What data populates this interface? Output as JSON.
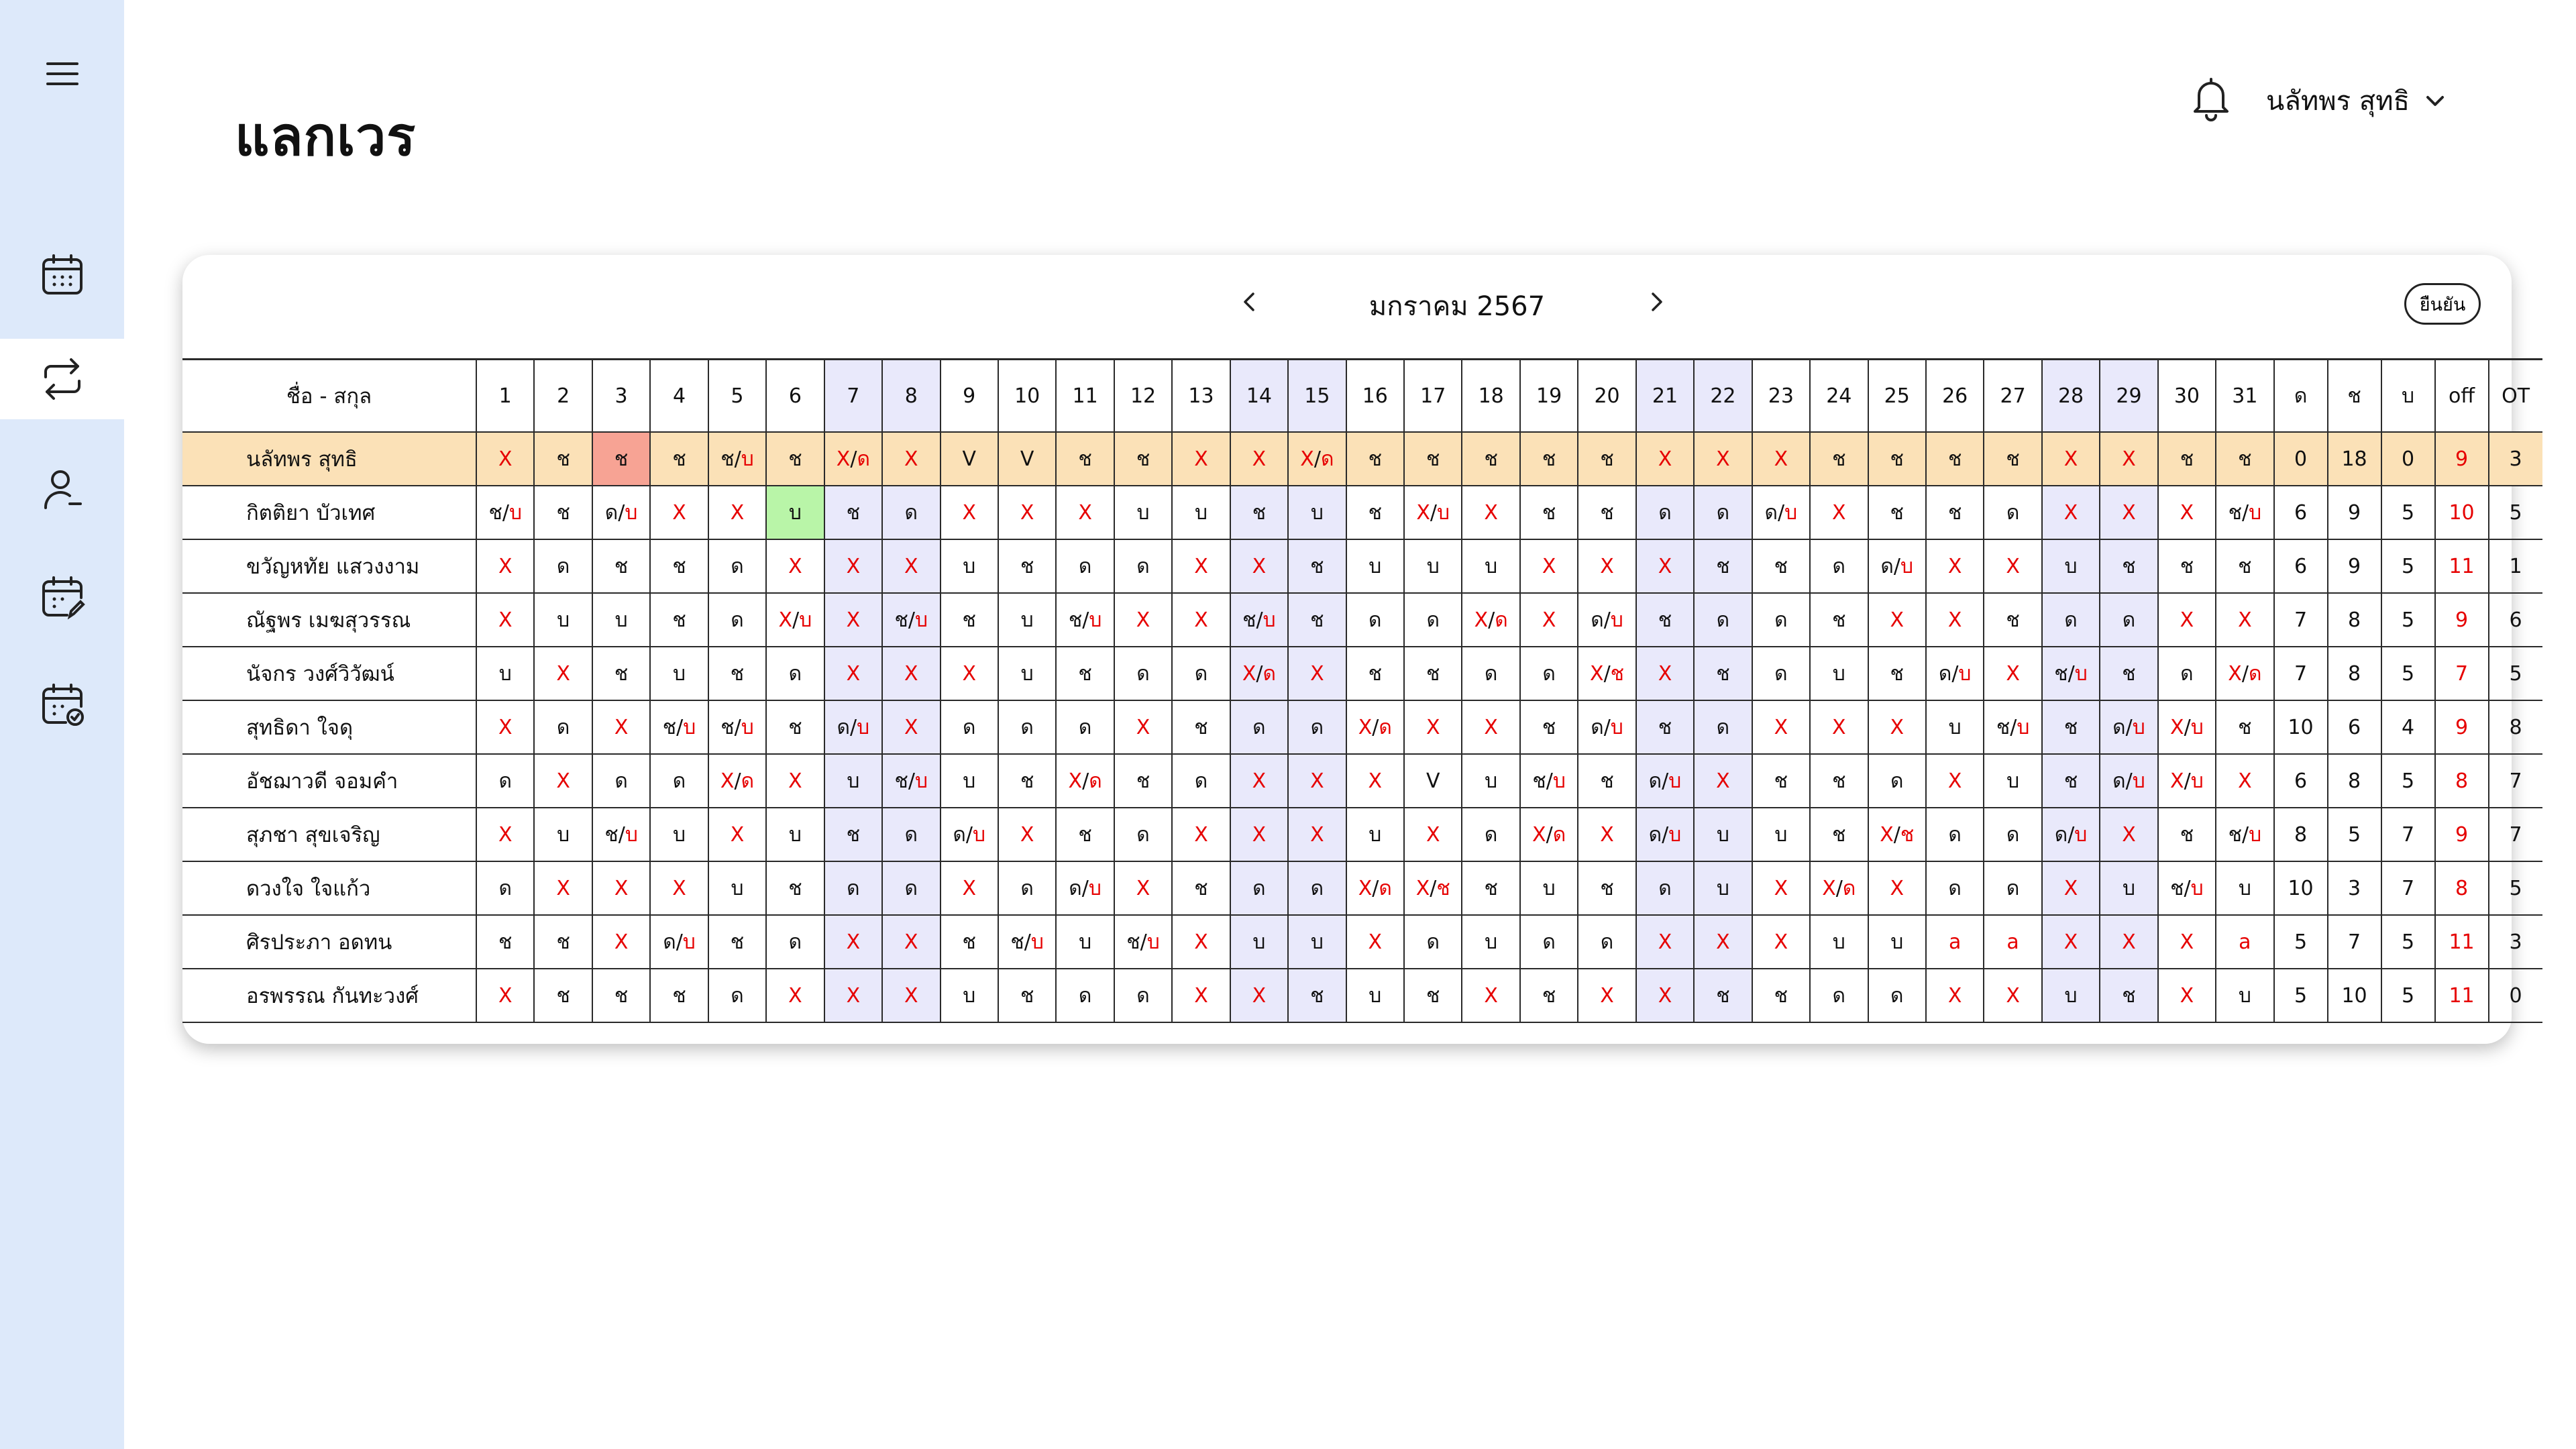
{
  "page": {
    "title": "แลกเวร"
  },
  "header": {
    "user_name": "นลัทพร สุทธิ"
  },
  "sidebar": {
    "items": [
      {
        "id": "menu",
        "icon": "hamburger-menu-icon",
        "active": false
      },
      {
        "id": "calendar",
        "icon": "calendar-icon",
        "active": false
      },
      {
        "id": "swap",
        "icon": "swap-arrows-icon",
        "active": true
      },
      {
        "id": "user",
        "icon": "user-minus-icon",
        "active": false
      },
      {
        "id": "calendar-edit",
        "icon": "calendar-edit-icon",
        "active": false
      },
      {
        "id": "calendar-check",
        "icon": "calendar-check-icon",
        "active": false
      }
    ]
  },
  "calendar": {
    "month_label": "มกราคม  2567",
    "confirm_label": "ยืนยัน"
  },
  "colors": {
    "sidebar_bg": "#dde9fa",
    "highlight_row": "#fbe1b7",
    "weekend_col": "#e9e9fb",
    "selected_cell": "#f7a394",
    "swap_cell": "#b9f5a8",
    "off_red": "#e60000"
  },
  "table": {
    "name_header": "ชื่อ - สกุล",
    "days": [
      "1",
      "2",
      "3",
      "4",
      "5",
      "6",
      "7",
      "8",
      "9",
      "10",
      "11",
      "12",
      "13",
      "14",
      "15",
      "16",
      "17",
      "18",
      "19",
      "20",
      "21",
      "22",
      "23",
      "24",
      "25",
      "26",
      "27",
      "28",
      "29",
      "30",
      "31"
    ],
    "weekend_days": [
      7,
      8,
      14,
      15,
      21,
      22,
      28,
      29
    ],
    "summary_headers": [
      "ด",
      "ช",
      "บ",
      "off",
      "OT"
    ],
    "rows": [
      {
        "name": "นลัทพร สุทธิ",
        "highlight": true,
        "shifts": [
          "X",
          "ช",
          "ช",
          "ช",
          "ช/บ",
          "ช",
          "X/ด",
          "X",
          "V",
          "V",
          "ช",
          "ช",
          "X",
          "X",
          "X/ด",
          "ช",
          "ช",
          "ช",
          "ช",
          "ช",
          "X",
          "X",
          "X",
          "ช",
          "ช",
          "ช",
          "ช",
          "X",
          "X",
          "ช",
          "ช"
        ],
        "summary": [
          "0",
          "18",
          "0",
          "9",
          "3"
        ]
      },
      {
        "name": "กิตติยา บัวเทศ",
        "shifts": [
          "ช/บ",
          "ช",
          "ด/บ",
          "X",
          "X",
          "บ",
          "ช",
          "ด",
          "X",
          "X",
          "X",
          "บ",
          "บ",
          "ช",
          "บ",
          "ช",
          "X/บ",
          "X",
          "ช",
          "ช",
          "ด",
          "ด",
          "ด/บ",
          "X",
          "ช",
          "ช",
          "ด",
          "X",
          "X",
          "X",
          "ช/บ"
        ],
        "summary": [
          "6",
          "9",
          "5",
          "10",
          "5"
        ]
      },
      {
        "name": "ขวัญหทัย แสวงงาม",
        "shifts": [
          "X",
          "ด",
          "ช",
          "ช",
          "ด",
          "X",
          "X",
          "X",
          "บ",
          "ช",
          "ด",
          "ด",
          "X",
          "X",
          "ช",
          "บ",
          "บ",
          "บ",
          "X",
          "X",
          "X",
          "ช",
          "ช",
          "ด",
          "ด/บ",
          "X",
          "X",
          "บ",
          "ช",
          "ช",
          "ช"
        ],
        "summary": [
          "6",
          "9",
          "5",
          "11",
          "1"
        ]
      },
      {
        "name": "ณัฐพร เมฆสุวรรณ",
        "shifts": [
          "X",
          "บ",
          "บ",
          "ช",
          "ด",
          "X/บ",
          "X",
          "ช/บ",
          "ช",
          "บ",
          "ช/บ",
          "X",
          "X",
          "ช/บ",
          "ช",
          "ด",
          "ด",
          "X/ด",
          "X",
          "ด/บ",
          "ช",
          "ด",
          "ด",
          "ช",
          "X",
          "X",
          "ช",
          "ด",
          "ด",
          "X",
          "X"
        ],
        "summary": [
          "7",
          "8",
          "5",
          "9",
          "6"
        ]
      },
      {
        "name": "นัจกร วงศ์วิวัฒน์",
        "shifts": [
          "บ",
          "X",
          "ช",
          "บ",
          "ช",
          "ด",
          "X",
          "X",
          "X",
          "บ",
          "ช",
          "ด",
          "ด",
          "X/ด",
          "X",
          "ช",
          "ช",
          "ด",
          "ด",
          "X/ช",
          "X",
          "ช",
          "ด",
          "บ",
          "ช",
          "ด/บ",
          "X",
          "ช/บ",
          "ช",
          "ด",
          "X/ด"
        ],
        "summary": [
          "7",
          "8",
          "5",
          "7",
          "5"
        ]
      },
      {
        "name": "สุทธิดา ใจดุ",
        "shifts": [
          "X",
          "ด",
          "X",
          "ช/บ",
          "ช/บ",
          "ช",
          "ด/บ",
          "X",
          "ด",
          "ด",
          "ด",
          "X",
          "ช",
          "ด",
          "ด",
          "X/ด",
          "X",
          "X",
          "ช",
          "ด/บ",
          "ช",
          "ด",
          "X",
          "X",
          "X",
          "บ",
          "ช/บ",
          "ช",
          "ด/บ",
          "X/บ",
          "ช"
        ],
        "summary": [
          "10",
          "6",
          "4",
          "9",
          "8"
        ]
      },
      {
        "name": "อัชฌาวดี จอมคำ",
        "shifts": [
          "ด",
          "X",
          "ด",
          "ด",
          "X/ด",
          "X",
          "บ",
          "ช/บ",
          "บ",
          "ช",
          "X/ด",
          "ช",
          "ด",
          "X",
          "X",
          "X",
          "V",
          "บ",
          "ช/บ",
          "ช",
          "ด/บ",
          "X",
          "ช",
          "ช",
          "ด",
          "X",
          "บ",
          "ช",
          "ด/บ",
          "X/บ",
          "X"
        ],
        "summary": [
          "6",
          "8",
          "5",
          "8",
          "7"
        ]
      },
      {
        "name": "สุภชา สุขเจริญ",
        "shifts": [
          "X",
          "บ",
          "ช/บ",
          "บ",
          "X",
          "บ",
          "ช",
          "ด",
          "ด/บ",
          "X",
          "ช",
          "ด",
          "X",
          "X",
          "X",
          "บ",
          "X",
          "ด",
          "X/ด",
          "X",
          "ด/บ",
          "บ",
          "บ",
          "ช",
          "X/ช",
          "ด",
          "ด",
          "ด/บ",
          "X",
          "ช",
          "ช/บ"
        ],
        "summary": [
          "8",
          "5",
          "7",
          "9",
          "7"
        ]
      },
      {
        "name": "ดวงใจ ใจแก้ว",
        "shifts": [
          "ด",
          "X",
          "X",
          "X",
          "บ",
          "ช",
          "ด",
          "ด",
          "X",
          "ด",
          "ด/บ",
          "X",
          "ช",
          "ด",
          "ด",
          "X/ด",
          "X/ช",
          "ช",
          "บ",
          "ช",
          "ด",
          "บ",
          "X",
          "X/ด",
          "X",
          "ด",
          "ด",
          "X",
          "บ",
          "ช/บ",
          "บ"
        ],
        "summary": [
          "10",
          "3",
          "7",
          "8",
          "5"
        ]
      },
      {
        "name": "ศิรประภา อดทน",
        "shifts": [
          "ช",
          "ช",
          "X",
          "ด/บ",
          "ช",
          "ด",
          "X",
          "X",
          "ช",
          "ช/บ",
          "บ",
          "ช/บ",
          "X",
          "บ",
          "บ",
          "X",
          "ด",
          "บ",
          "ด",
          "ด",
          "X",
          "X",
          "X",
          "บ",
          "บ",
          "a",
          "a",
          "X",
          "X",
          "X",
          "a"
        ],
        "summary": [
          "5",
          "7",
          "5",
          "11",
          "3"
        ]
      },
      {
        "name": "อรพรรณ กันทะวงศ์",
        "shifts": [
          "X",
          "ช",
          "ช",
          "ช",
          "ด",
          "X",
          "X",
          "X",
          "บ",
          "ช",
          "ด",
          "ด",
          "X",
          "X",
          "ช",
          "บ",
          "ช",
          "X",
          "ช",
          "X",
          "X",
          "ช",
          "ช",
          "ด",
          "ด",
          "X",
          "X",
          "บ",
          "ช",
          "X",
          "บ"
        ],
        "summary": [
          "5",
          "10",
          "5",
          "11",
          "0"
        ]
      }
    ]
  }
}
